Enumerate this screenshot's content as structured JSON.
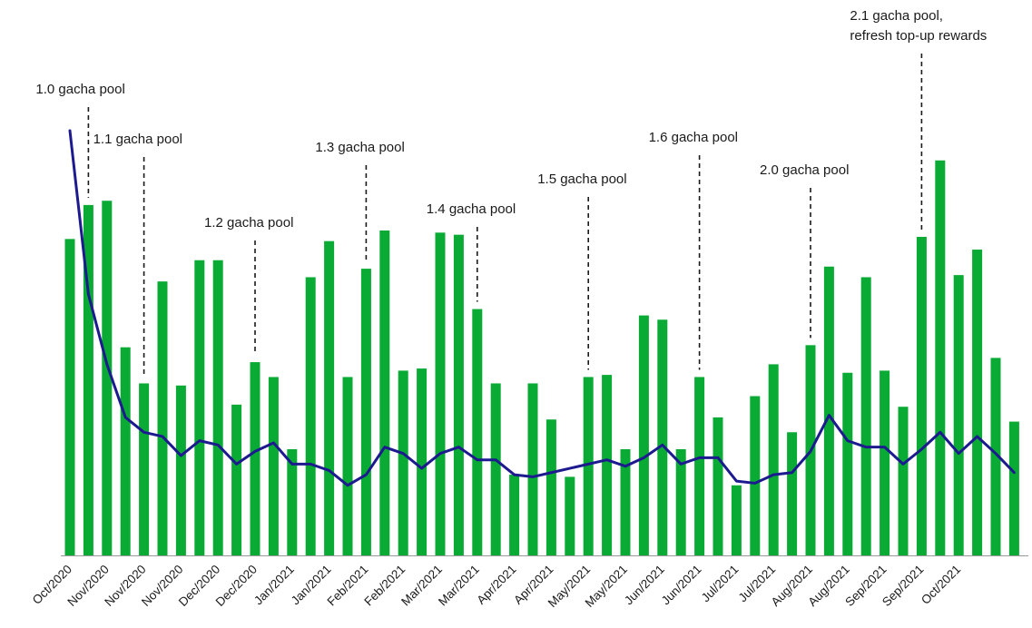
{
  "chart_data": {
    "type": "bar",
    "title": "",
    "xlabel": "",
    "ylabel": "",
    "ylim": [
      0,
      100
    ],
    "grid": false,
    "legend": "none",
    "colors": {
      "bars": "#0aab34",
      "line": "#1d1a8f",
      "axis": "#9a9a9a",
      "annotation": "#1a1a1a"
    },
    "x_tick_labels": [
      "Oct/2020",
      "Nov/2020",
      "Nov/2020",
      "Nov/2020",
      "Dec/2020",
      "Dec/2020",
      "Jan/2021",
      "Jan/2021",
      "Feb/2021",
      "Feb/2021",
      "Mar/2021",
      "Mar/2021",
      "Apr/2021",
      "Apr/2021",
      "May/2021",
      "May/2021",
      "Jun/2021",
      "Jun/2021",
      "Jul/2021",
      "Jul/2021",
      "Aug/2021",
      "Aug/2021",
      "Sep/2021",
      "Sep/2021",
      "Oct/2021"
    ],
    "series": [
      {
        "type": "bar",
        "values": [
          74.5,
          82.5,
          83.5,
          49,
          40.5,
          64.5,
          40,
          69.5,
          69.5,
          35.5,
          45.5,
          42,
          25,
          65.5,
          74,
          42,
          67.5,
          76.5,
          43.5,
          44,
          76,
          75.5,
          58,
          40.5,
          19,
          40.5,
          32,
          18.5,
          42,
          42.5,
          25,
          56.5,
          55.5,
          25,
          42,
          32.5,
          16.5,
          37.5,
          45,
          29,
          49.5,
          68,
          43,
          65.5,
          43.5,
          35,
          75,
          93,
          66,
          72,
          46.5,
          31.5
        ]
      },
      {
        "type": "line",
        "values": [
          100,
          61.5,
          45,
          32.5,
          29,
          28,
          23.5,
          27,
          26,
          21.5,
          24.5,
          26.5,
          21.5,
          21.5,
          20,
          16.5,
          19,
          25.5,
          24,
          20.5,
          24,
          25.5,
          22.5,
          22.5,
          19,
          18.5,
          19.5,
          20.5,
          21.5,
          22.5,
          21,
          23,
          26,
          21.5,
          23,
          23,
          17.5,
          17,
          19,
          19.5,
          24.5,
          33,
          27,
          25.5,
          25.5,
          21.5,
          25,
          29,
          24,
          28,
          24,
          19.5
        ]
      }
    ],
    "annotations": [
      {
        "lines": [
          "1.0 gacha pool"
        ],
        "index": 1
      },
      {
        "lines": [
          "1.1 gacha pool"
        ],
        "index": 4
      },
      {
        "lines": [
          "1.2 gacha pool"
        ],
        "index": 10
      },
      {
        "lines": [
          "1.3 gacha pool"
        ],
        "index": 16
      },
      {
        "lines": [
          "1.4 gacha pool"
        ],
        "index": 22
      },
      {
        "lines": [
          "1.5 gacha pool"
        ],
        "index": 28
      },
      {
        "lines": [
          "1.6 gacha pool"
        ],
        "index": 34
      },
      {
        "lines": [
          "2.0 gacha pool"
        ],
        "index": 40
      },
      {
        "lines": [
          "2.1 gacha pool,",
          "refresh top-up rewards"
        ],
        "index": 46
      }
    ]
  }
}
